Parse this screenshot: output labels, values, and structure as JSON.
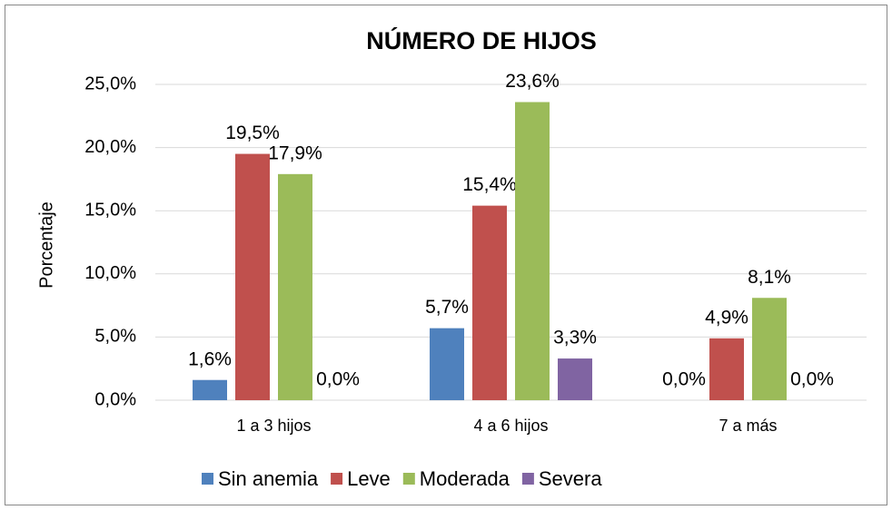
{
  "chart_data": {
    "type": "bar",
    "title": "NÚMERO DE HIJOS",
    "y_label": "Porcentaje",
    "categories": [
      "1 a 3 hijos",
      "4 a 6 hijos",
      "7 a más"
    ],
    "series": [
      {
        "name": "Sin anemia",
        "color": "#4f81bd",
        "values": [
          1.6,
          5.7,
          0.0
        ],
        "value_labels": [
          "1,6%",
          "5,7%",
          "0,0%"
        ]
      },
      {
        "name": "Leve",
        "color": "#c0504d",
        "values": [
          19.5,
          15.4,
          4.9
        ],
        "value_labels": [
          "19,5%",
          "15,4%",
          "4,9%"
        ]
      },
      {
        "name": "Moderada",
        "color": "#9bbb59",
        "values": [
          17.9,
          23.6,
          8.1
        ],
        "value_labels": [
          "17,9%",
          "23,6%",
          "8,1%"
        ]
      },
      {
        "name": "Severa",
        "color": "#8064a2",
        "values": [
          0.0,
          3.3,
          0.0
        ],
        "value_labels": [
          "0,0%",
          "3,3%",
          "0,0%"
        ]
      }
    ],
    "ylim": [
      0,
      25
    ],
    "yticks": [
      {
        "value": 0,
        "label": "0,0%"
      },
      {
        "value": 5,
        "label": "5,0%"
      },
      {
        "value": 10,
        "label": "10,0%"
      },
      {
        "value": 15,
        "label": "15,0%"
      },
      {
        "value": 20,
        "label": "20,0%"
      },
      {
        "value": 25,
        "label": "25,0%"
      }
    ],
    "grid": true,
    "legend": "bottom"
  }
}
